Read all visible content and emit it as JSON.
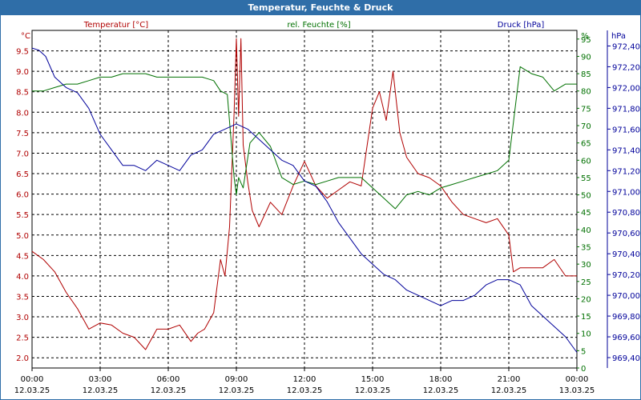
{
  "window": {
    "title": "Temperatur, Feuchte & Druck"
  },
  "chart_data": {
    "type": "line",
    "title": "Temperatur, Feuchte & Druck",
    "grid": true,
    "x_ticks": [
      {
        "time": "00:00",
        "date": "12.03.25"
      },
      {
        "time": "03:00",
        "date": "12.03.25"
      },
      {
        "time": "06:00",
        "date": "12.03.25"
      },
      {
        "time": "09:00",
        "date": "12.03.25"
      },
      {
        "time": "12:00",
        "date": "12.03.25"
      },
      {
        "time": "15:00",
        "date": "12.03.25"
      },
      {
        "time": "18:00",
        "date": "12.03.25"
      },
      {
        "time": "21:00",
        "date": "12.03.25"
      },
      {
        "time": "00:00",
        "date": "13.03.25"
      }
    ],
    "xlim_hours": [
      0,
      24
    ],
    "axes": {
      "temperature": {
        "label": "Temperatur [°C]",
        "unit": "°C",
        "color": "#b00000",
        "range": [
          1.75,
          10.0
        ],
        "ticks": [
          "2.0",
          "2.5",
          "3.0",
          "3.5",
          "4.0",
          "4.5",
          "5.0",
          "5.5",
          "6.0",
          "6.5",
          "7.0",
          "7.5",
          "8.0",
          "8.5",
          "9.0",
          "9.5"
        ]
      },
      "humidity": {
        "label": "rel. Feuchte [%]",
        "unit": "%",
        "color": "#007000",
        "range": [
          0,
          97.5
        ],
        "ticks": [
          "0",
          "5",
          "10",
          "15",
          "20",
          "25",
          "30",
          "35",
          "40",
          "45",
          "50",
          "55",
          "60",
          "65",
          "70",
          "75",
          "80",
          "85",
          "90",
          "95"
        ]
      },
      "pressure": {
        "label": "Druck [hPa]",
        "unit": "hPa",
        "color": "#00009a",
        "range": [
          969.3,
          972.55
        ],
        "ticks": [
          "969,40",
          "969,60",
          "969,80",
          "970,00",
          "970,20",
          "970,40",
          "970,60",
          "970,80",
          "971,00",
          "971,20",
          "971,40",
          "971,60",
          "971,80",
          "972,00",
          "972,20",
          "972,40"
        ]
      }
    },
    "series": [
      {
        "name": "Temperatur [°C]",
        "axis": "temperature",
        "color": "#b00000",
        "x": [
          0,
          0.5,
          1,
          1.5,
          2,
          2.5,
          3,
          3.5,
          4,
          4.5,
          5,
          5.5,
          6,
          6.5,
          7,
          7.3,
          7.6,
          8,
          8.3,
          8.5,
          8.7,
          8.9,
          9.0,
          9.1,
          9.2,
          9.3,
          9.5,
          9.7,
          10,
          10.5,
          11,
          11.5,
          12,
          12.5,
          13,
          13.5,
          14,
          14.5,
          15,
          15.3,
          15.6,
          15.9,
          16.2,
          16.5,
          17,
          17.5,
          18,
          18.5,
          19,
          19.5,
          20,
          20.5,
          21,
          21.2,
          21.5,
          22,
          22.5,
          23,
          23.5,
          24
        ],
        "values": [
          4.6,
          4.4,
          4.1,
          3.6,
          3.2,
          2.7,
          2.85,
          2.8,
          2.6,
          2.5,
          2.2,
          2.7,
          2.7,
          2.8,
          2.4,
          2.6,
          2.7,
          3.1,
          4.4,
          4.0,
          5.2,
          8.0,
          9.8,
          7.9,
          9.8,
          7.2,
          6.3,
          5.6,
          5.2,
          5.8,
          5.5,
          6.2,
          6.8,
          6.2,
          5.9,
          6.1,
          6.3,
          6.2,
          8.1,
          8.5,
          7.8,
          9.0,
          7.5,
          6.9,
          6.5,
          6.4,
          6.2,
          5.8,
          5.5,
          5.4,
          5.3,
          5.4,
          5.0,
          4.1,
          4.2,
          4.2,
          4.2,
          4.4,
          4.0,
          4.0
        ]
      },
      {
        "name": "rel. Feuchte [%]",
        "axis": "humidity",
        "color": "#007000",
        "x": [
          0,
          0.5,
          1,
          1.5,
          2,
          2.5,
          3,
          3.5,
          4,
          4.5,
          5,
          5.5,
          6,
          6.5,
          7,
          7.5,
          8,
          8.3,
          8.6,
          8.9,
          9.0,
          9.1,
          9.3,
          9.6,
          10,
          10.5,
          11,
          11.5,
          12,
          12.5,
          13,
          13.5,
          14,
          14.5,
          15,
          15.5,
          16,
          16.5,
          17,
          17.5,
          18,
          18.5,
          19,
          19.5,
          20,
          20.5,
          21,
          21.5,
          22,
          22.5,
          23,
          23.5,
          24
        ],
        "values": [
          80,
          80,
          81,
          82,
          82,
          83,
          84,
          84,
          85,
          85,
          85,
          84,
          84,
          84,
          84,
          84,
          83,
          80,
          79,
          55,
          50,
          55,
          52,
          65,
          68,
          64,
          55,
          53,
          54,
          53,
          54,
          55,
          55,
          55,
          52,
          49,
          46,
          50,
          51,
          50,
          52,
          53,
          54,
          55,
          56,
          57,
          60,
          87,
          85,
          84,
          80,
          82,
          82
        ]
      },
      {
        "name": "Druck [hPa]",
        "axis": "pressure",
        "color": "#00009a",
        "x": [
          0,
          0.3,
          0.6,
          1,
          1.5,
          2,
          2.5,
          3,
          3.5,
          4,
          4.5,
          5,
          5.5,
          6,
          6.5,
          7,
          7.5,
          8,
          8.5,
          9,
          9.5,
          10,
          10.5,
          11,
          11.5,
          12,
          12.5,
          13,
          13.5,
          14,
          14.5,
          15,
          15.5,
          16,
          16.5,
          17,
          17.5,
          18,
          18.5,
          19,
          19.5,
          20,
          20.5,
          21,
          21.5,
          22,
          22.5,
          23,
          23.5,
          24
        ],
        "values": [
          972.38,
          972.36,
          972.3,
          972.1,
          972.0,
          971.95,
          971.8,
          971.55,
          971.4,
          971.25,
          971.25,
          971.2,
          971.3,
          971.25,
          971.2,
          971.35,
          971.4,
          971.55,
          971.6,
          971.65,
          971.6,
          971.5,
          971.4,
          971.3,
          971.25,
          971.1,
          971.05,
          970.9,
          970.7,
          970.55,
          970.4,
          970.3,
          970.2,
          970.15,
          970.05,
          970.0,
          969.95,
          969.9,
          969.95,
          969.95,
          970.0,
          970.1,
          970.15,
          970.15,
          970.1,
          969.9,
          969.8,
          969.7,
          969.6,
          969.45
        ]
      }
    ]
  }
}
